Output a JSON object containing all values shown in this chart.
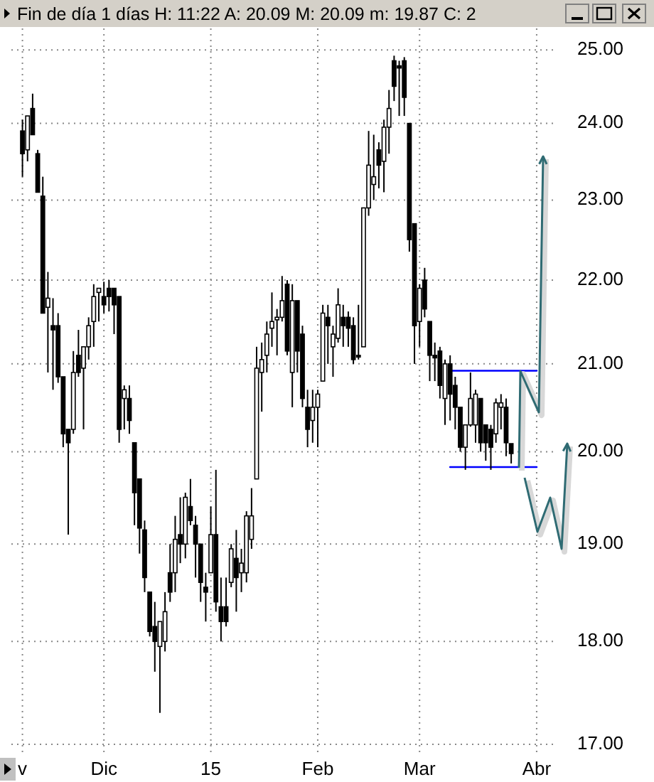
{
  "chart_data": {
    "type": "candlestick",
    "title": "Fin de día 1 días  H: 11:22  A: 20.09  M: 20.09  m: 19.87  C: 2",
    "categories": [
      "v",
      null,
      null,
      null,
      null,
      null,
      null,
      null,
      null,
      null,
      null,
      null,
      null,
      null,
      null,
      null,
      "Dic",
      null,
      null,
      null,
      null,
      null,
      null,
      null,
      null,
      null,
      null,
      null,
      null,
      null,
      null,
      null,
      null,
      null,
      null,
      null,
      null,
      "15",
      null,
      null,
      null,
      null,
      null,
      null,
      null,
      null,
      null,
      null,
      null,
      null,
      null,
      null,
      null,
      null,
      null,
      null,
      null,
      null,
      "Feb",
      null,
      null,
      null,
      null,
      null,
      null,
      null,
      null,
      null,
      null,
      null,
      null,
      null,
      null,
      null,
      null,
      null,
      null,
      null,
      "Mar",
      null,
      null,
      null,
      null,
      null,
      null,
      null,
      null,
      null,
      null,
      null,
      null,
      null,
      null,
      null,
      null,
      null,
      null,
      null,
      null,
      null,
      null,
      "Abr",
      null,
      null,
      null
    ],
    "ohlc": [
      [
        23.9,
        24.05,
        23.3,
        23.6
      ],
      [
        23.65,
        24.1,
        23.5,
        24.1
      ],
      [
        24.2,
        24.4,
        23.85,
        23.85
      ],
      [
        23.6,
        23.65,
        23.1,
        23.1
      ],
      [
        23.05,
        23.3,
        21.6,
        21.6
      ],
      [
        21.67,
        22.1,
        20.9,
        21.78
      ],
      [
        21.45,
        21.78,
        20.7,
        21.4
      ],
      [
        21.45,
        21.6,
        20.78,
        20.85
      ],
      [
        20.85,
        20.85,
        20.05,
        20.2
      ],
      [
        20.25,
        20.25,
        19.1,
        20.1
      ],
      [
        20.25,
        21.15,
        20.2,
        20.9
      ],
      [
        21.1,
        21.4,
        20.85,
        20.9
      ],
      [
        20.95,
        21.2,
        20.25,
        21.2
      ],
      [
        21.2,
        21.55,
        21.05,
        21.45
      ],
      [
        21.5,
        21.95,
        21.2,
        21.8
      ],
      [
        21.85,
        21.9,
        21.5,
        21.9
      ],
      [
        21.8,
        21.98,
        21.6,
        21.7
      ],
      [
        21.9,
        22.0,
        21.62,
        21.8
      ],
      [
        21.9,
        21.9,
        21.35,
        21.7
      ],
      [
        21.8,
        21.8,
        20.1,
        20.25
      ],
      [
        20.6,
        20.75,
        20.25,
        20.7
      ],
      [
        20.6,
        20.75,
        20.2,
        20.35
      ],
      [
        20.1,
        20.1,
        19.2,
        19.55
      ],
      [
        19.7,
        19.7,
        18.9,
        19.17
      ],
      [
        19.15,
        19.25,
        18.5,
        18.65
      ],
      [
        18.5,
        18.5,
        18.05,
        18.1
      ],
      [
        18.15,
        18.4,
        17.7,
        18.0
      ],
      [
        17.95,
        18.2,
        17.3,
        18.2
      ],
      [
        18.0,
        18.5,
        17.9,
        18.3
      ],
      [
        18.7,
        19.0,
        18.4,
        18.5
      ],
      [
        18.7,
        19.3,
        18.5,
        19.05
      ],
      [
        19.1,
        19.5,
        18.8,
        19.0
      ],
      [
        19.0,
        19.55,
        18.85,
        19.5
      ],
      [
        19.4,
        19.7,
        19.2,
        19.25
      ],
      [
        19.2,
        19.3,
        18.65,
        19.0
      ],
      [
        19.0,
        19.0,
        18.4,
        18.6
      ],
      [
        18.55,
        18.7,
        18.2,
        18.5
      ],
      [
        18.7,
        19.4,
        18.7,
        19.1
      ],
      [
        19.1,
        19.8,
        18.3,
        18.4
      ],
      [
        18.35,
        18.65,
        18.0,
        18.2
      ],
      [
        18.35,
        18.65,
        18.15,
        18.2
      ],
      [
        18.6,
        19.0,
        18.55,
        18.95
      ],
      [
        18.85,
        19.15,
        18.3,
        18.65
      ],
      [
        18.7,
        18.95,
        18.5,
        18.8
      ],
      [
        18.7,
        19.35,
        18.6,
        19.3
      ],
      [
        19.05,
        19.6,
        18.95,
        19.3
      ],
      [
        19.7,
        21.2,
        19.7,
        20.95
      ],
      [
        20.9,
        21.25,
        20.45,
        21.05
      ],
      [
        21.1,
        21.5,
        20.9,
        21.35
      ],
      [
        21.42,
        21.85,
        21.2,
        21.5
      ],
      [
        21.52,
        21.65,
        21.1,
        21.55
      ],
      [
        21.55,
        22.05,
        21.5,
        21.75
      ],
      [
        21.95,
        22.0,
        21.1,
        21.15
      ],
      [
        20.9,
        21.95,
        20.5,
        21.75
      ],
      [
        21.75,
        21.75,
        20.9,
        21.15
      ],
      [
        21.35,
        21.45,
        20.5,
        20.6
      ],
      [
        20.5,
        20.7,
        20.05,
        20.25
      ],
      [
        20.35,
        20.7,
        20.1,
        20.5
      ],
      [
        20.5,
        20.7,
        20.05,
        20.65
      ],
      [
        20.8,
        21.7,
        20.8,
        21.6
      ],
      [
        21.55,
        21.7,
        21.0,
        21.45
      ],
      [
        21.2,
        21.45,
        20.85,
        21.35
      ],
      [
        21.3,
        21.9,
        21.25,
        21.7
      ],
      [
        21.55,
        21.7,
        21.2,
        21.45
      ],
      [
        21.55,
        21.62,
        21.2,
        21.42
      ],
      [
        21.45,
        21.55,
        21.0,
        21.05
      ],
      [
        21.1,
        21.7,
        21.05,
        21.08
      ],
      [
        21.2,
        22.9,
        21.2,
        22.9
      ],
      [
        22.9,
        23.9,
        22.8,
        23.45
      ],
      [
        23.2,
        23.85,
        23.0,
        23.3
      ],
      [
        23.65,
        23.75,
        23.15,
        23.45
      ],
      [
        23.5,
        24.05,
        23.1,
        23.95
      ],
      [
        23.95,
        24.45,
        23.6,
        24.2
      ],
      [
        24.85,
        24.92,
        24.3,
        24.5
      ],
      [
        24.78,
        24.85,
        24.1,
        24.75
      ],
      [
        24.85,
        24.9,
        24.1,
        24.35
      ],
      [
        24.0,
        24.0,
        22.35,
        22.5
      ],
      [
        22.7,
        22.7,
        21.0,
        21.45
      ],
      [
        21.5,
        21.95,
        21.2,
        21.9
      ],
      [
        22.0,
        22.15,
        21.55,
        21.65
      ],
      [
        21.5,
        21.5,
        20.8,
        21.1
      ],
      [
        21.1,
        21.25,
        20.8,
        21.07
      ],
      [
        21.15,
        21.2,
        20.6,
        20.75
      ],
      [
        20.6,
        21.05,
        20.3,
        21.0
      ],
      [
        21.0,
        21.1,
        20.35,
        20.65
      ],
      [
        20.75,
        20.85,
        20.25,
        20.5
      ],
      [
        20.5,
        20.5,
        20.0,
        20.05
      ],
      [
        20.05,
        20.3,
        19.8,
        20.3
      ],
      [
        20.3,
        20.9,
        20.28,
        20.6
      ],
      [
        20.3,
        20.7,
        20.1,
        20.65
      ],
      [
        20.6,
        20.6,
        20.0,
        20.1
      ],
      [
        20.3,
        20.3,
        19.9,
        20.1
      ],
      [
        20.25,
        20.3,
        19.8,
        20.05
      ],
      [
        20.2,
        20.6,
        20.1,
        20.55
      ],
      [
        20.5,
        20.65,
        20.25,
        20.55
      ],
      [
        20.5,
        20.6,
        19.95,
        20.1
      ],
      [
        20.09,
        20.09,
        19.87,
        19.98
      ],
      null,
      null,
      null,
      null,
      null,
      null,
      null,
      null
    ],
    "series": [
      {
        "type": "line",
        "color": "#0000ff",
        "values": [
          null,
          null,
          null,
          null,
          null,
          null,
          null,
          null,
          null,
          null,
          null,
          null,
          null,
          null,
          null,
          null,
          null,
          null,
          null,
          null,
          null,
          null,
          null,
          null,
          null,
          null,
          null,
          null,
          null,
          null,
          null,
          null,
          null,
          null,
          null,
          null,
          null,
          null,
          null,
          null,
          null,
          null,
          null,
          null,
          null,
          null,
          null,
          null,
          null,
          null,
          null,
          null,
          null,
          null,
          null,
          null,
          null,
          null,
          null,
          null,
          null,
          null,
          null,
          null,
          null,
          null,
          null,
          null,
          null,
          null,
          null,
          null,
          null,
          null,
          null,
          null,
          null,
          null,
          null,
          null,
          null,
          null,
          null,
          null,
          20.92,
          20.92,
          20.92,
          20.92,
          20.92,
          20.92,
          20.92,
          20.92,
          20.92,
          20.92,
          20.92,
          20.92,
          20.92,
          20.92,
          20.92,
          20.92,
          20.92,
          20.92,
          null,
          null,
          null
        ]
      },
      {
        "type": "line",
        "color": "#0000ff",
        "values": [
          null,
          null,
          null,
          null,
          null,
          null,
          null,
          null,
          null,
          null,
          null,
          null,
          null,
          null,
          null,
          null,
          null,
          null,
          null,
          null,
          null,
          null,
          null,
          null,
          null,
          null,
          null,
          null,
          null,
          null,
          null,
          null,
          null,
          null,
          null,
          null,
          null,
          null,
          null,
          null,
          null,
          null,
          null,
          null,
          null,
          null,
          null,
          null,
          null,
          null,
          null,
          null,
          null,
          null,
          null,
          null,
          null,
          null,
          null,
          null,
          null,
          null,
          null,
          null,
          null,
          null,
          null,
          null,
          null,
          null,
          null,
          null,
          null,
          null,
          null,
          null,
          null,
          null,
          null,
          null,
          null,
          null,
          null,
          null,
          19.83,
          19.83,
          19.83,
          19.83,
          19.83,
          19.83,
          19.83,
          19.83,
          19.83,
          19.83,
          19.83,
          19.83,
          19.83,
          19.83,
          19.83,
          19.83,
          19.83,
          19.83,
          null,
          null,
          null
        ]
      }
    ],
    "ylim": [
      16.9,
      25.3
    ],
    "yticks": [
      {
        "value": 17,
        "label": "17.00"
      },
      {
        "value": 18,
        "label": "18.00"
      },
      {
        "value": 19,
        "label": "19.00"
      },
      {
        "value": 20,
        "label": "20.00"
      },
      {
        "value": 21,
        "label": "21.00"
      },
      {
        "value": 22,
        "label": "22.00"
      },
      {
        "value": 23,
        "label": "23.00"
      },
      {
        "value": 24,
        "label": "24.00"
      },
      {
        "value": 25,
        "label": "25.00"
      }
    ],
    "log": "y",
    "grid": true
  }
}
